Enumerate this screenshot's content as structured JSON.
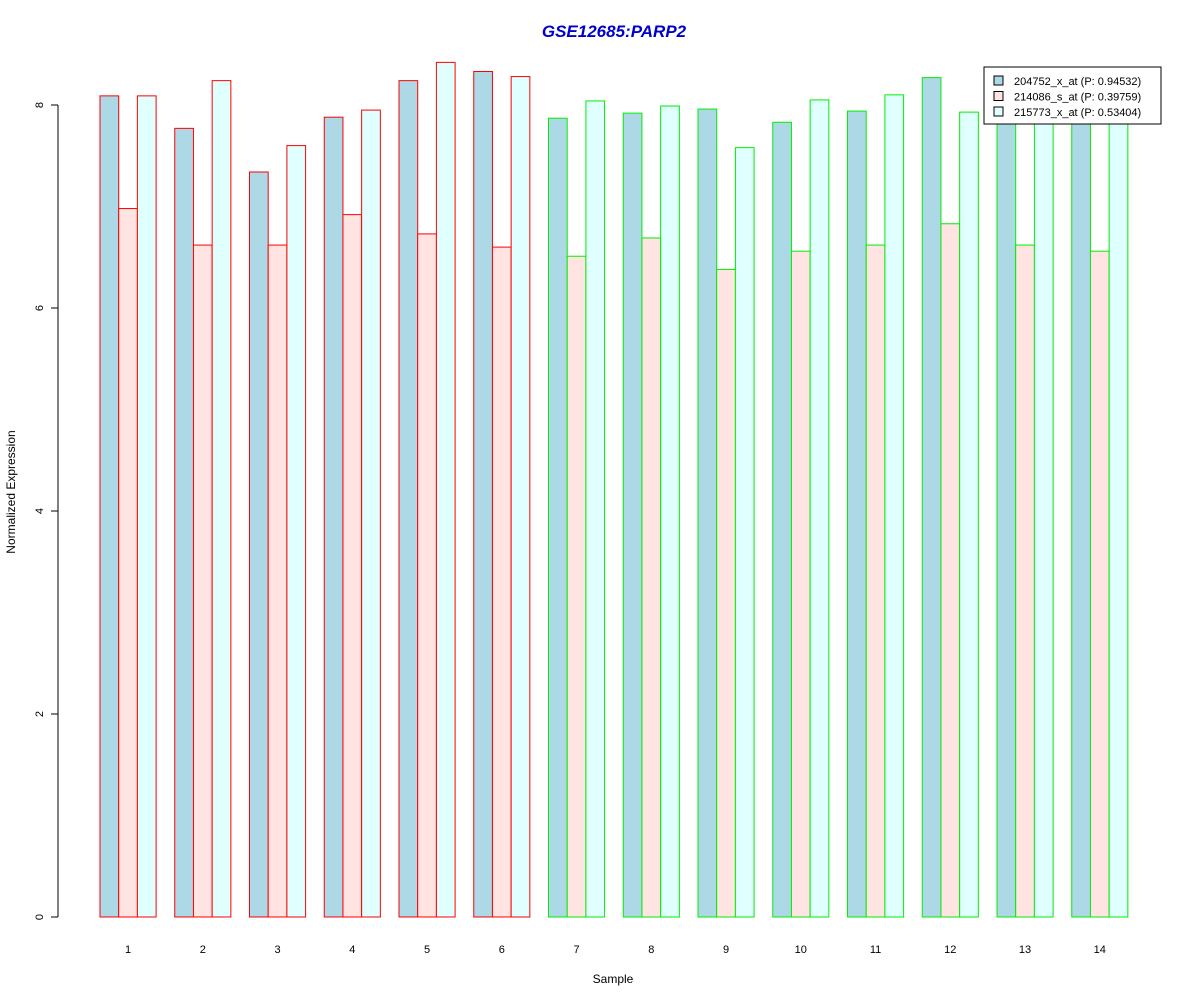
{
  "chart_data": {
    "type": "bar",
    "title": "GSE12685:PARP2",
    "xlabel": "Sample",
    "ylabel": "Normalized Expression",
    "categories": [
      "1",
      "2",
      "3",
      "4",
      "5",
      "6",
      "7",
      "8",
      "9",
      "10",
      "11",
      "12",
      "13",
      "14"
    ],
    "ylim": [
      0,
      8.4
    ],
    "yticks": [
      "0",
      "2",
      "4",
      "6",
      "8"
    ],
    "grid": false,
    "legend_position": "top-right",
    "series": [
      {
        "name": "204752_x_at (P: 0.94532)",
        "fill": "#add8e6",
        "values": [
          8.09,
          7.77,
          7.34,
          7.88,
          8.24,
          8.33,
          7.87,
          7.92,
          7.96,
          7.83,
          7.94,
          8.27,
          7.88,
          7.93
        ]
      },
      {
        "name": "214086_s_at (P: 0.39759)",
        "fill": "#ffe4e1",
        "values": [
          6.98,
          6.62,
          6.62,
          6.92,
          6.73,
          6.6,
          6.51,
          6.69,
          6.38,
          6.56,
          6.62,
          6.83,
          6.62,
          6.56
        ]
      },
      {
        "name": "215773_x_at (P: 0.53404)",
        "fill": "#e0ffff",
        "values": [
          8.09,
          8.24,
          7.6,
          7.95,
          8.42,
          8.28,
          8.04,
          7.99,
          7.58,
          8.05,
          8.1,
          7.93,
          7.92,
          7.92
        ]
      }
    ],
    "group_border_colors": [
      "#ff0000",
      "#ff0000",
      "#ff0000",
      "#ff0000",
      "#ff0000",
      "#ff0000",
      "#00ee00",
      "#00ee00",
      "#00ee00",
      "#00ee00",
      "#00ee00",
      "#00ee00",
      "#00ee00",
      "#00ee00"
    ],
    "title_color": "#0000cc"
  }
}
